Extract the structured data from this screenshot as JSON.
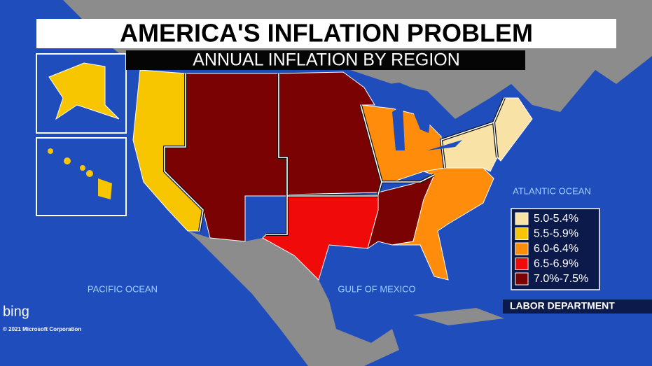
{
  "header": {
    "title": "AMERICA'S INFLATION PROBLEM",
    "subtitle": "ANNUAL INFLATION BY REGION"
  },
  "labels": {
    "atlantic": "ATLANTIC OCEAN",
    "pacific": "PACIFIC OCEAN",
    "gulf": "GULF OF MEXICO"
  },
  "legend": {
    "items": [
      {
        "label": "5.0-5.4%",
        "color": "#f8e2a6"
      },
      {
        "label": "5.5-5.9%",
        "color": "#f7c600"
      },
      {
        "label": "6.0-6.4%",
        "color": "#ff8c0a"
      },
      {
        "label": "6.5-6.9%",
        "color": "#f00a0a"
      },
      {
        "label": "7.0%-7.5%",
        "color": "#7a0202"
      }
    ]
  },
  "source": "LABOR DEPARTMENT",
  "branding": {
    "logo": "bing",
    "copyright": "© 2021 Microsoft Corporation"
  }
}
